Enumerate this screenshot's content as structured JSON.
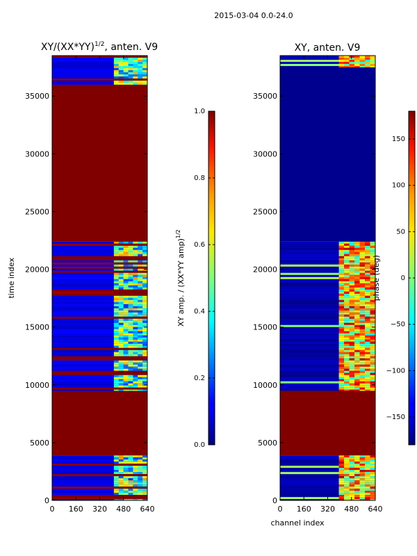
{
  "figure": {
    "suptitle": "2015-03-04 0.0-24.0"
  },
  "chart_data": [
    {
      "type": "heatmap",
      "title_main": "XY/(XX*YY)",
      "title_exp": "1/2",
      "title_tail": ", anten. V9",
      "xlabel": "",
      "ylabel": "time index",
      "xlim": [
        0,
        640
      ],
      "ylim": [
        0,
        38500
      ],
      "xticks": [
        0,
        160,
        320,
        480,
        640
      ],
      "yticks": [
        0,
        5000,
        10000,
        15000,
        20000,
        25000,
        30000,
        35000
      ],
      "colormap": "jet",
      "colorbar": {
        "label_main": "XY amp. / (XX*YY amp)",
        "label_exp": "1/2",
        "min": 0.0,
        "max": 1.0,
        "ticks": [
          "0.0",
          "0.2",
          "0.4",
          "0.6",
          "0.8",
          "1.0"
        ]
      },
      "regions": [
        {
          "t0": 0,
          "t1": 3900,
          "kind": "data"
        },
        {
          "t0": 3900,
          "t1": 9500,
          "kind": "saturated",
          "value": 1.0
        },
        {
          "t0": 9500,
          "t1": 22400,
          "kind": "data"
        },
        {
          "t0": 22400,
          "t1": 36000,
          "kind": "saturated",
          "value": 1.0
        },
        {
          "t0": 36000,
          "t1": 38500,
          "kind": "data"
        }
      ],
      "band_channels": [
        415,
        640
      ],
      "background_value": 0.1,
      "band_value": 0.45
    },
    {
      "type": "heatmap",
      "title": "XY, anten. V9",
      "xlabel": "channel index",
      "ylabel": "",
      "xlim": [
        0,
        640
      ],
      "ylim": [
        0,
        38500
      ],
      "xticks": [
        0,
        160,
        320,
        480,
        640
      ],
      "yticks": [
        0,
        5000,
        10000,
        15000,
        20000,
        25000,
        30000,
        35000
      ],
      "colormap": "jet",
      "colorbar": {
        "label": "phase (deg)",
        "min": -180,
        "max": 180,
        "ticks": [
          "−150",
          "−100",
          "−50",
          "0",
          "50",
          "100",
          "150"
        ],
        "tick_values": [
          -150,
          -100,
          -50,
          0,
          50,
          100,
          150
        ]
      },
      "regions": [
        {
          "t0": 0,
          "t1": 3900,
          "kind": "data"
        },
        {
          "t0": 3900,
          "t1": 9500,
          "kind": "saturated",
          "value": 180
        },
        {
          "t0": 9500,
          "t1": 22400,
          "kind": "data"
        },
        {
          "t0": 22400,
          "t1": 37500,
          "kind": "flat",
          "value": -175
        },
        {
          "t0": 37500,
          "t1": 38500,
          "kind": "data"
        }
      ],
      "band_channels": [
        395,
        640
      ],
      "background_value": -165,
      "band_value": 60
    }
  ]
}
